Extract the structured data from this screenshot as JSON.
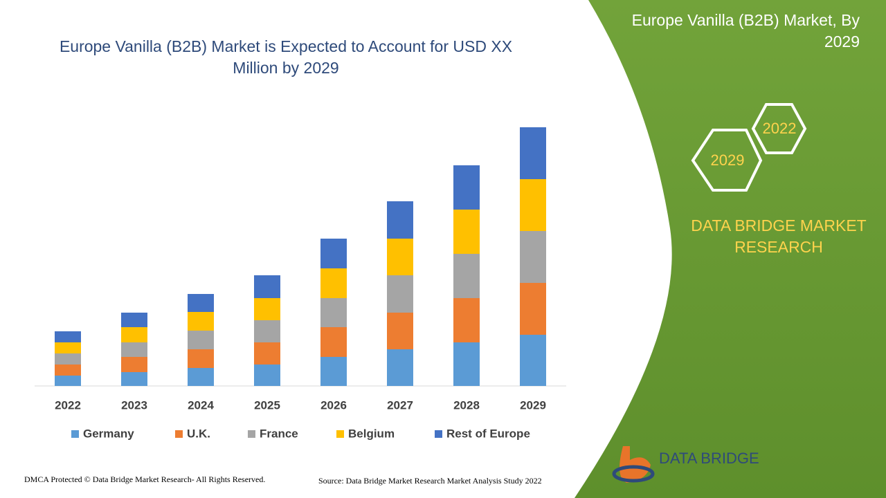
{
  "chart_data": {
    "type": "bar",
    "stacked": true,
    "title": "Europe Vanilla (B2B) Market is Expected to Account for USD XX Million by 2029",
    "categories": [
      "2022",
      "2023",
      "2024",
      "2025",
      "2026",
      "2027",
      "2028",
      "2029"
    ],
    "series": [
      {
        "name": "Germany",
        "color": "#5b9bd5",
        "values": [
          15,
          20,
          26,
          31,
          42,
          53,
          63,
          74
        ]
      },
      {
        "name": "U.K.",
        "color": "#ed7d31",
        "values": [
          16,
          22,
          27,
          32,
          43,
          53,
          64,
          75
        ]
      },
      {
        "name": "France",
        "color": "#a5a5a5",
        "values": [
          16,
          21,
          27,
          32,
          42,
          54,
          64,
          75
        ]
      },
      {
        "name": "Belgium",
        "color": "#ffc000",
        "values": [
          16,
          22,
          27,
          32,
          43,
          53,
          64,
          75
        ]
      },
      {
        "name": "Rest of Europe",
        "color": "#4472c4",
        "values": [
          16,
          21,
          26,
          33,
          43,
          54,
          64,
          75
        ]
      }
    ],
    "ylim": [
      0,
      400
    ]
  },
  "side": {
    "title": "Europe Vanilla (B2B) Market, By 2029",
    "hex_1": "2022",
    "hex_2": "2029",
    "brand": "DATA BRIDGE MARKET RESEARCH"
  },
  "footer": {
    "copyright": "DMCA Protected © Data Bridge Market Research- All Rights Reserved.",
    "source": "Source: Data Bridge Market Research Market Analysis Study 2022",
    "logo": "DATA BRIDGE"
  }
}
